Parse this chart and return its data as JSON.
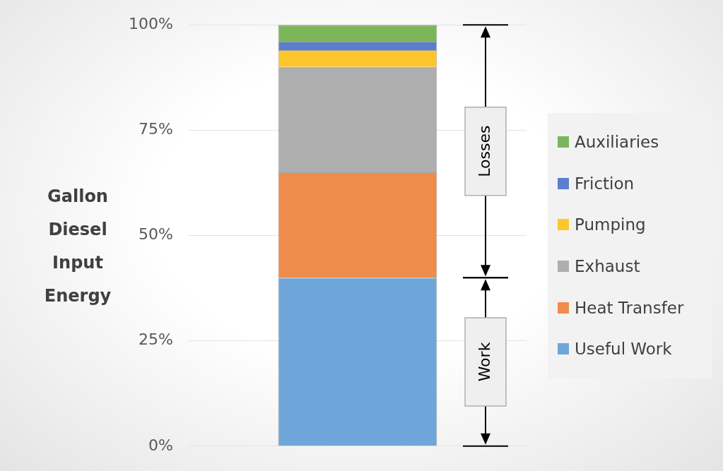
{
  "chart_data": {
    "type": "bar",
    "stacked": true,
    "ylabel": "Gallon Diesel Input Energy",
    "categories": [
      null
    ],
    "series": [
      {
        "name": "Useful Work",
        "color": "#6ea6d9",
        "values": [
          40
        ]
      },
      {
        "name": "Heat Transfer",
        "color": "#ee8c4c",
        "values": [
          25
        ]
      },
      {
        "name": "Exhaust",
        "color": "#aeaeae",
        "values": [
          25
        ]
      },
      {
        "name": "Pumping",
        "color": "#fdc72c",
        "values": [
          4
        ]
      },
      {
        "name": "Friction",
        "color": "#5a80cd",
        "values": [
          2
        ]
      },
      {
        "name": "Auxiliaries",
        "color": "#7db65a",
        "values": [
          4
        ]
      }
    ],
    "ylim": [
      0,
      100
    ],
    "yticks": [
      {
        "value": 0,
        "label": "0%"
      },
      {
        "value": 25,
        "label": "25%"
      },
      {
        "value": 50,
        "label": "50%"
      },
      {
        "value": 75,
        "label": "75%"
      },
      {
        "value": 100,
        "label": "100%"
      }
    ],
    "grid": "y",
    "legend": "right",
    "annotations": [
      "Losses",
      "Work"
    ]
  }
}
